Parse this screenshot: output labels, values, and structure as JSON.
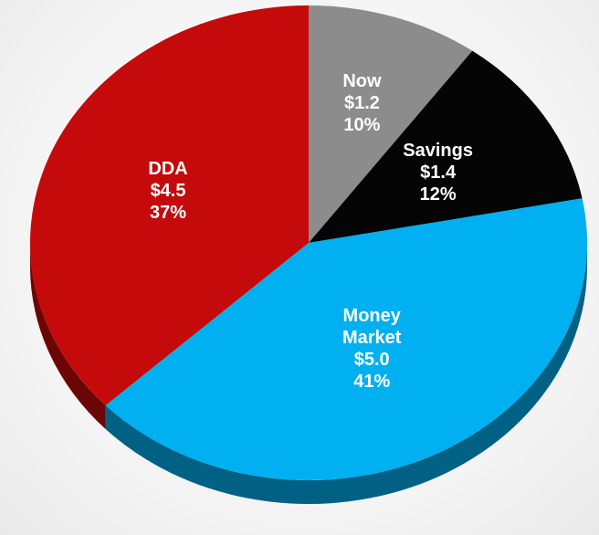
{
  "chart_data": {
    "type": "pie",
    "categories": [
      "Now",
      "Savings",
      "Money Market",
      "DDA"
    ],
    "values": [
      10,
      12,
      41,
      37
    ],
    "value_labels": [
      "10%",
      "12%",
      "41%",
      "37%"
    ],
    "amount_labels": [
      "$1.2",
      "$1.4",
      "$5.0",
      "$4.5"
    ],
    "colors": [
      "#8c8c8c",
      "#050505",
      "#00b0f0",
      "#c40a0a"
    ]
  }
}
